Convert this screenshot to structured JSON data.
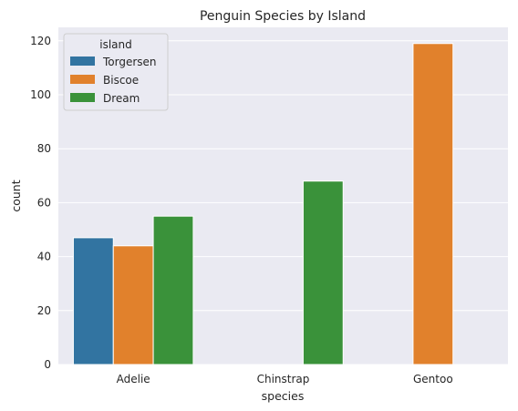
{
  "chart_data": {
    "type": "bar",
    "title": "Penguin Species by Island",
    "xlabel": "species",
    "ylabel": "count",
    "categories": [
      "Adelie",
      "Chinstrap",
      "Gentoo"
    ],
    "series": [
      {
        "name": "Torgersen",
        "color": "#3274a1",
        "values": [
          47,
          null,
          null
        ]
      },
      {
        "name": "Biscoe",
        "color": "#e1812c",
        "values": [
          44,
          null,
          119
        ]
      },
      {
        "name": "Dream",
        "color": "#3a923a",
        "values": [
          55,
          68,
          null
        ]
      }
    ],
    "ylim": [
      0,
      125
    ],
    "yticks": [
      "0",
      "20",
      "40",
      "60",
      "80",
      "100",
      "120"
    ],
    "grid": true,
    "legend": {
      "title": "island",
      "placement": "top-left"
    },
    "colors": {
      "background": "#eaeaf2",
      "grid": "#ffffff"
    }
  }
}
